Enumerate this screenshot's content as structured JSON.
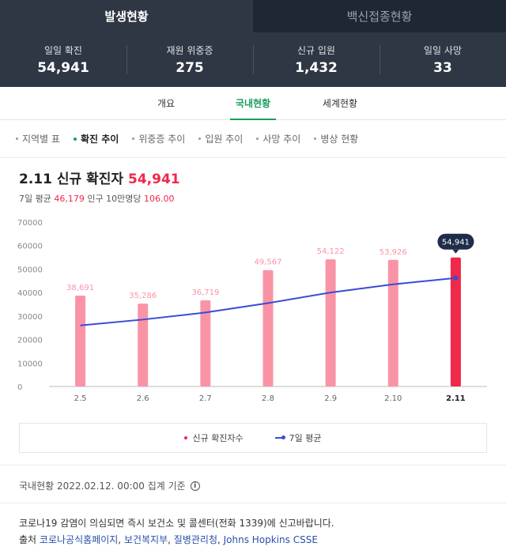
{
  "tabs": {
    "active": "발생현황",
    "inactive": "백신접종현황"
  },
  "stats": [
    {
      "label": "일일 확진",
      "value": "54,941"
    },
    {
      "label": "재원 위중증",
      "value": "275"
    },
    {
      "label": "신규 입원",
      "value": "1,432"
    },
    {
      "label": "일일 사망",
      "value": "33"
    }
  ],
  "subtabs": [
    "개요",
    "국내현황",
    "세계현황"
  ],
  "chips": [
    "지역별 표",
    "확진 추이",
    "위중증 추이",
    "입원 추이",
    "사망 추이",
    "병상 현황"
  ],
  "heading": {
    "date": "2.11",
    "label": "신규 확진자",
    "value": "54,941"
  },
  "subinfo": {
    "avg_label": "7일 평균",
    "avg_value": "46,179",
    "per_label": "인구 10만명당",
    "per_value": "106.00"
  },
  "chart_data": {
    "type": "bar",
    "categories": [
      "2.5",
      "2.6",
      "2.7",
      "2.8",
      "2.9",
      "2.10",
      "2.11"
    ],
    "series": [
      {
        "name": "신규 확진자수",
        "values": [
          38691,
          35286,
          36719,
          49567,
          54122,
          53926,
          54941
        ],
        "type": "bar"
      },
      {
        "name": "7일 평균",
        "values": [
          26000,
          28500,
          31500,
          35500,
          40000,
          43500,
          46179
        ],
        "type": "line"
      }
    ],
    "value_labels": [
      "38,691",
      "35,286",
      "36,719",
      "49,567",
      "54,122",
      "53,926",
      "54,941"
    ],
    "yticks": [
      "0",
      "10000",
      "20000",
      "30000",
      "40000",
      "50000",
      "60000",
      "70000"
    ],
    "ylim": [
      0,
      70000
    ],
    "colors": {
      "bar": "#f994a6",
      "bar_highlight": "#f0284a",
      "line": "#3a4bd6"
    }
  },
  "legend": {
    "bars": "신규 확진자수",
    "line": "7일 평균"
  },
  "footer": {
    "date": "국내현황 2022.02.12. 00:00 집계 기준",
    "info_icon": "i"
  },
  "notice": "코로나19 감염이 의심되면 즉시 보건소 및 콜센터(전화 1339)에 신고바랍니다.",
  "sources": {
    "prefix": "출처",
    "links": [
      "코로나공식홈페이지",
      "보건복지부",
      "질병관리청",
      "Johns Hopkins CSSE"
    ]
  }
}
